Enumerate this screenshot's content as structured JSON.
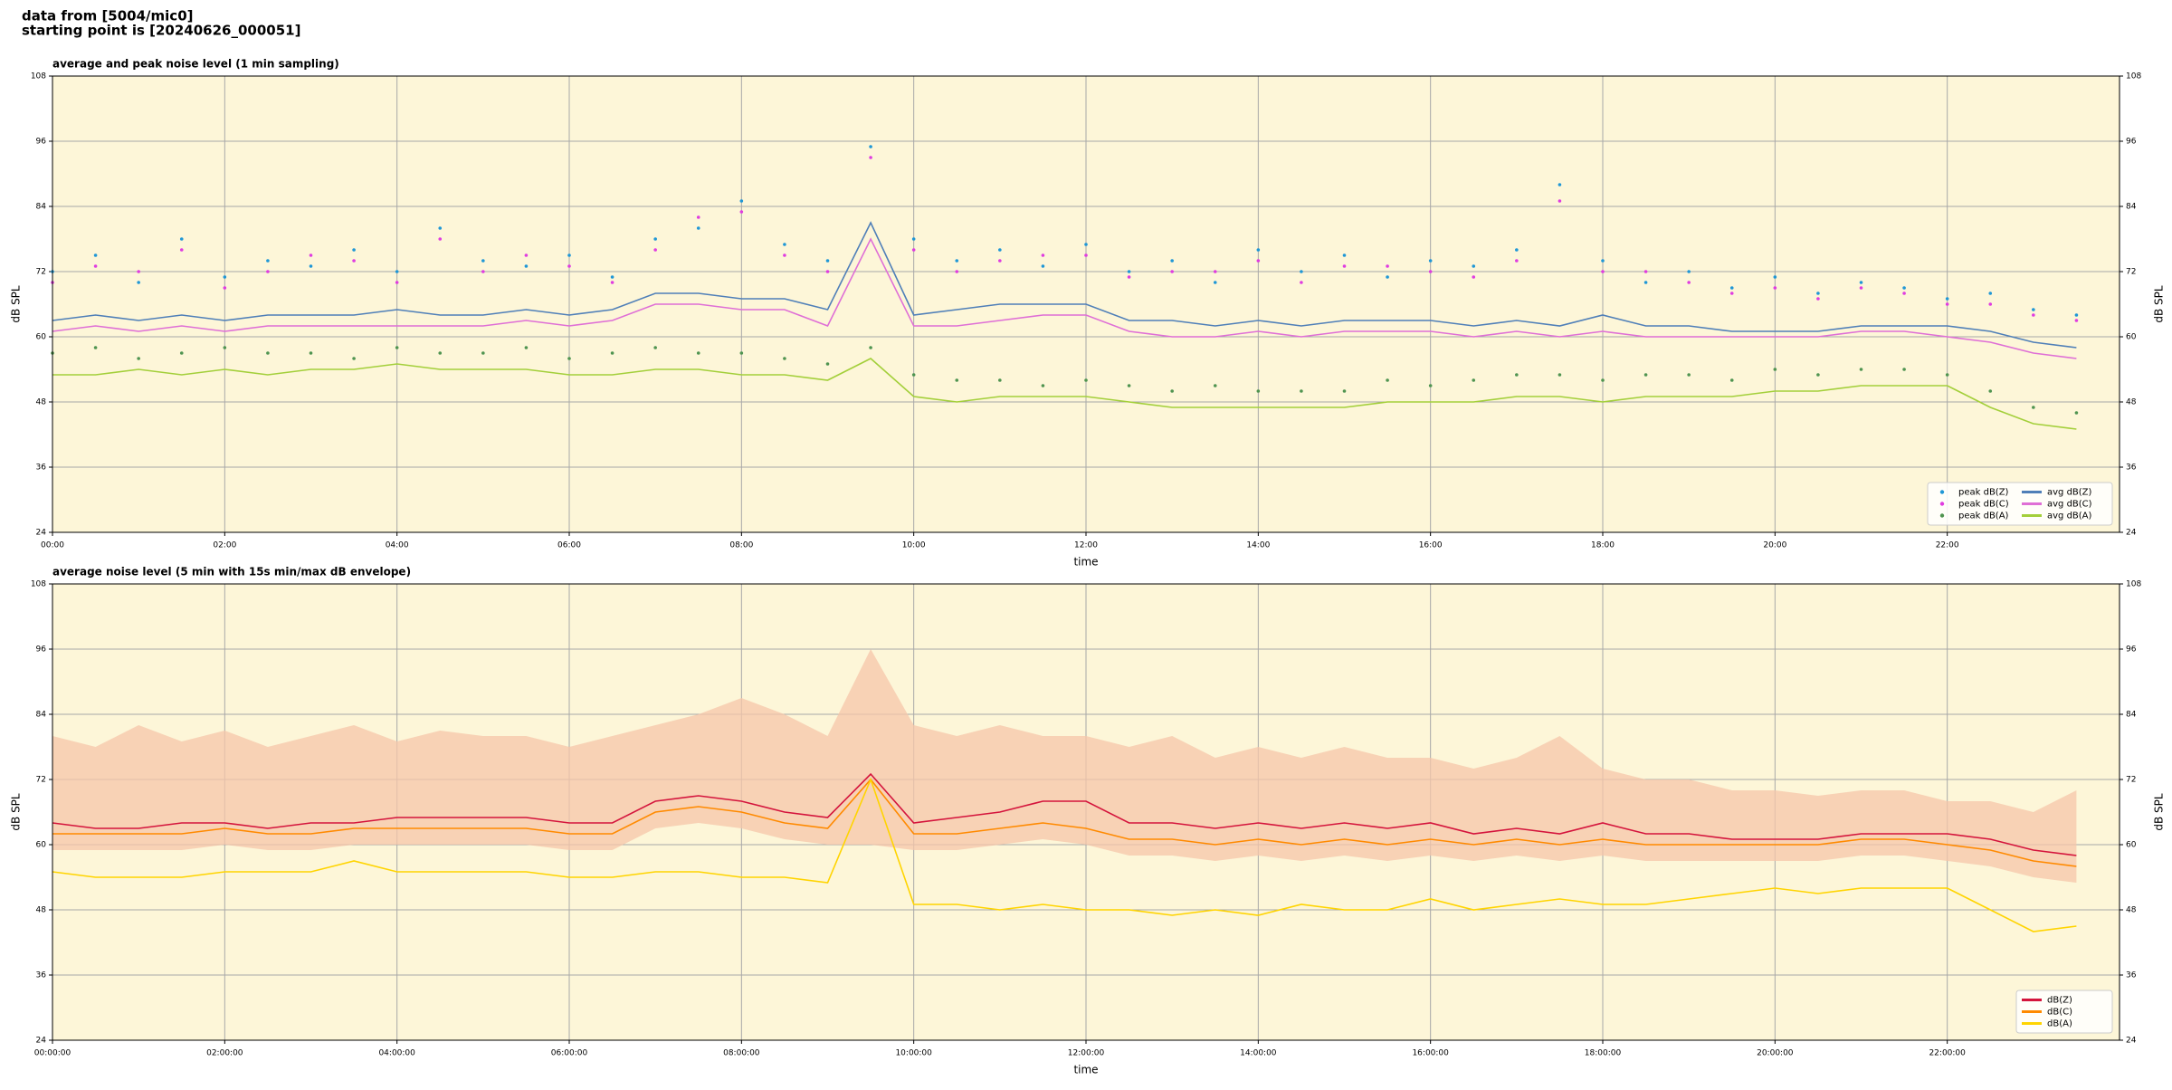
{
  "page_title": {
    "line1": "data from [5004/mic0]",
    "line2": "starting point is [20240626_000051]"
  },
  "chart_data": [
    {
      "type": "line",
      "title": "average and peak noise level (1 min sampling)",
      "xlabel": "time",
      "ylabel": "dB SPL",
      "x": [
        0,
        0.5,
        1,
        1.5,
        2,
        2.5,
        3,
        3.5,
        4,
        4.5,
        5,
        5.5,
        6,
        6.5,
        7,
        7.5,
        8,
        8.5,
        9,
        9.5,
        10,
        10.5,
        11,
        11.5,
        12,
        12.5,
        13,
        13.5,
        14,
        14.5,
        15,
        15.5,
        16,
        16.5,
        17,
        17.5,
        18,
        18.5,
        19,
        19.5,
        20,
        20.5,
        21,
        21.5,
        22,
        22.5,
        23,
        23.5
      ],
      "xlim": [
        0,
        24
      ],
      "xticks": [
        {
          "value": 0,
          "label": "00:00"
        },
        {
          "value": 2,
          "label": "02:00"
        },
        {
          "value": 4,
          "label": "04:00"
        },
        {
          "value": 6,
          "label": "06:00"
        },
        {
          "value": 8,
          "label": "08:00"
        },
        {
          "value": 10,
          "label": "10:00"
        },
        {
          "value": 12,
          "label": "12:00"
        },
        {
          "value": 14,
          "label": "14:00"
        },
        {
          "value": 16,
          "label": "16:00"
        },
        {
          "value": 18,
          "label": "18:00"
        },
        {
          "value": 20,
          "label": "20:00"
        },
        {
          "value": 22,
          "label": "22:00"
        }
      ],
      "ylim": [
        24,
        108
      ],
      "yticks": [
        24,
        36,
        48,
        60,
        72,
        84,
        96,
        108
      ],
      "grid": true,
      "right_axis": true,
      "legend": "lower right",
      "legend_columns": 2,
      "background": "#fdf6d8",
      "series": [
        {
          "name": "peak dB(Z)",
          "color": "#1f97d6",
          "style": "markers",
          "values": [
            72,
            75,
            70,
            78,
            71,
            74,
            73,
            76,
            72,
            80,
            74,
            73,
            75,
            71,
            78,
            80,
            85,
            77,
            74,
            95,
            78,
            74,
            76,
            73,
            77,
            72,
            74,
            70,
            76,
            72,
            75,
            71,
            74,
            73,
            76,
            88,
            74,
            70,
            72,
            69,
            71,
            68,
            70,
            69,
            67,
            68,
            65,
            64
          ]
        },
        {
          "name": "peak dB(C)",
          "color": "#e03ce0",
          "style": "markers",
          "values": [
            70,
            73,
            72,
            76,
            69,
            72,
            75,
            74,
            70,
            78,
            72,
            75,
            73,
            70,
            76,
            82,
            83,
            75,
            72,
            93,
            76,
            72,
            74,
            75,
            75,
            71,
            72,
            72,
            74,
            70,
            73,
            73,
            72,
            71,
            74,
            85,
            72,
            72,
            70,
            68,
            69,
            67,
            69,
            68,
            66,
            66,
            64,
            63
          ]
        },
        {
          "name": "peak dB(A)",
          "color": "#4f9450",
          "style": "markers",
          "values": [
            57,
            58,
            56,
            57,
            58,
            57,
            57,
            56,
            58,
            57,
            57,
            58,
            56,
            57,
            58,
            57,
            57,
            56,
            55,
            58,
            53,
            52,
            52,
            51,
            52,
            51,
            50,
            51,
            50,
            50,
            50,
            52,
            51,
            52,
            53,
            53,
            52,
            53,
            53,
            52,
            54,
            53,
            54,
            54,
            53,
            50,
            47,
            46
          ]
        },
        {
          "name": "avg dB(Z)",
          "color": "#4f7fb8",
          "style": "line",
          "values": [
            63,
            64,
            63,
            64,
            63,
            64,
            64,
            64,
            65,
            64,
            64,
            65,
            64,
            65,
            68,
            68,
            67,
            67,
            65,
            81,
            64,
            65,
            66,
            66,
            66,
            63,
            63,
            62,
            63,
            62,
            63,
            63,
            63,
            62,
            63,
            62,
            64,
            62,
            62,
            61,
            61,
            61,
            62,
            62,
            62,
            61,
            59,
            58
          ]
        },
        {
          "name": "avg dB(C)",
          "color": "#df6fd6",
          "style": "line",
          "values": [
            61,
            62,
            61,
            62,
            61,
            62,
            62,
            62,
            62,
            62,
            62,
            63,
            62,
            63,
            66,
            66,
            65,
            65,
            62,
            78,
            62,
            62,
            63,
            64,
            64,
            61,
            60,
            60,
            61,
            60,
            61,
            61,
            61,
            60,
            61,
            60,
            61,
            60,
            60,
            60,
            60,
            60,
            61,
            61,
            60,
            59,
            57,
            56
          ]
        },
        {
          "name": "avg dB(A)",
          "color": "#a3cf3a",
          "style": "line",
          "values": [
            53,
            53,
            54,
            53,
            54,
            53,
            54,
            54,
            55,
            54,
            54,
            54,
            53,
            53,
            54,
            54,
            53,
            53,
            52,
            56,
            49,
            48,
            49,
            49,
            49,
            48,
            47,
            47,
            47,
            47,
            47,
            48,
            48,
            48,
            49,
            49,
            48,
            49,
            49,
            49,
            50,
            50,
            51,
            51,
            51,
            47,
            44,
            43
          ]
        }
      ]
    },
    {
      "type": "line",
      "title": "average noise level (5 min with 15s min/max dB envelope)",
      "xlabel": "time",
      "ylabel": "dB SPL",
      "x": [
        0,
        0.5,
        1,
        1.5,
        2,
        2.5,
        3,
        3.5,
        4,
        4.5,
        5,
        5.5,
        6,
        6.5,
        7,
        7.5,
        8,
        8.5,
        9,
        9.5,
        10,
        10.5,
        11,
        11.5,
        12,
        12.5,
        13,
        13.5,
        14,
        14.5,
        15,
        15.5,
        16,
        16.5,
        17,
        17.5,
        18,
        18.5,
        19,
        19.5,
        20,
        20.5,
        21,
        21.5,
        22,
        22.5,
        23,
        23.5
      ],
      "xlim": [
        0,
        24
      ],
      "xticks": [
        {
          "value": 0,
          "label": "00:00:00"
        },
        {
          "value": 2,
          "label": "02:00:00"
        },
        {
          "value": 4,
          "label": "04:00:00"
        },
        {
          "value": 6,
          "label": "06:00:00"
        },
        {
          "value": 8,
          "label": "08:00:00"
        },
        {
          "value": 10,
          "label": "10:00:00"
        },
        {
          "value": 12,
          "label": "12:00:00"
        },
        {
          "value": 14,
          "label": "14:00:00"
        },
        {
          "value": 16,
          "label": "16:00:00"
        },
        {
          "value": 18,
          "label": "18:00:00"
        },
        {
          "value": 20,
          "label": "20:00:00"
        },
        {
          "value": 22,
          "label": "22:00:00"
        }
      ],
      "ylim": [
        24,
        108
      ],
      "yticks": [
        24,
        36,
        48,
        60,
        72,
        84,
        96,
        108
      ],
      "grid": true,
      "right_axis": true,
      "legend": "lower right",
      "legend_columns": 1,
      "background": "#fdf6d8",
      "envelope": {
        "color": "#f6c6aa",
        "upper": [
          80,
          78,
          82,
          79,
          81,
          78,
          80,
          82,
          79,
          81,
          80,
          80,
          78,
          80,
          82,
          84,
          87,
          84,
          80,
          96,
          82,
          80,
          82,
          80,
          80,
          78,
          80,
          76,
          78,
          76,
          78,
          76,
          76,
          74,
          76,
          80,
          74,
          72,
          72,
          70,
          70,
          69,
          70,
          70,
          68,
          68,
          66,
          70
        ],
        "lower": [
          59,
          59,
          59,
          59,
          60,
          59,
          59,
          60,
          60,
          60,
          60,
          60,
          59,
          59,
          63,
          64,
          63,
          61,
          60,
          60,
          59,
          59,
          60,
          61,
          60,
          58,
          58,
          57,
          58,
          57,
          58,
          57,
          58,
          57,
          58,
          57,
          58,
          57,
          57,
          57,
          57,
          57,
          58,
          58,
          57,
          56,
          54,
          53
        ]
      },
      "series": [
        {
          "name": "dB(Z)",
          "color": "#d4143c",
          "style": "line",
          "values": [
            64,
            63,
            63,
            64,
            64,
            63,
            64,
            64,
            65,
            65,
            65,
            65,
            64,
            64,
            68,
            69,
            68,
            66,
            65,
            73,
            64,
            65,
            66,
            68,
            68,
            64,
            64,
            63,
            64,
            63,
            64,
            63,
            64,
            62,
            63,
            62,
            64,
            62,
            62,
            61,
            61,
            61,
            62,
            62,
            62,
            61,
            59,
            58
          ]
        },
        {
          "name": "dB(C)",
          "color": "#ff8a00",
          "style": "line",
          "values": [
            62,
            62,
            62,
            62,
            63,
            62,
            62,
            63,
            63,
            63,
            63,
            63,
            62,
            62,
            66,
            67,
            66,
            64,
            63,
            72,
            62,
            62,
            63,
            64,
            63,
            61,
            61,
            60,
            61,
            60,
            61,
            60,
            61,
            60,
            61,
            60,
            61,
            60,
            60,
            60,
            60,
            60,
            61,
            61,
            60,
            59,
            57,
            56
          ]
        },
        {
          "name": "dB(A)",
          "color": "#ffd400",
          "style": "line",
          "values": [
            55,
            54,
            54,
            54,
            55,
            55,
            55,
            57,
            55,
            55,
            55,
            55,
            54,
            54,
            55,
            55,
            54,
            54,
            53,
            72,
            49,
            49,
            48,
            49,
            48,
            48,
            47,
            48,
            47,
            49,
            48,
            48,
            50,
            48,
            49,
            50,
            49,
            49,
            50,
            51,
            52,
            51,
            52,
            52,
            52,
            48,
            44,
            45
          ]
        }
      ]
    }
  ]
}
